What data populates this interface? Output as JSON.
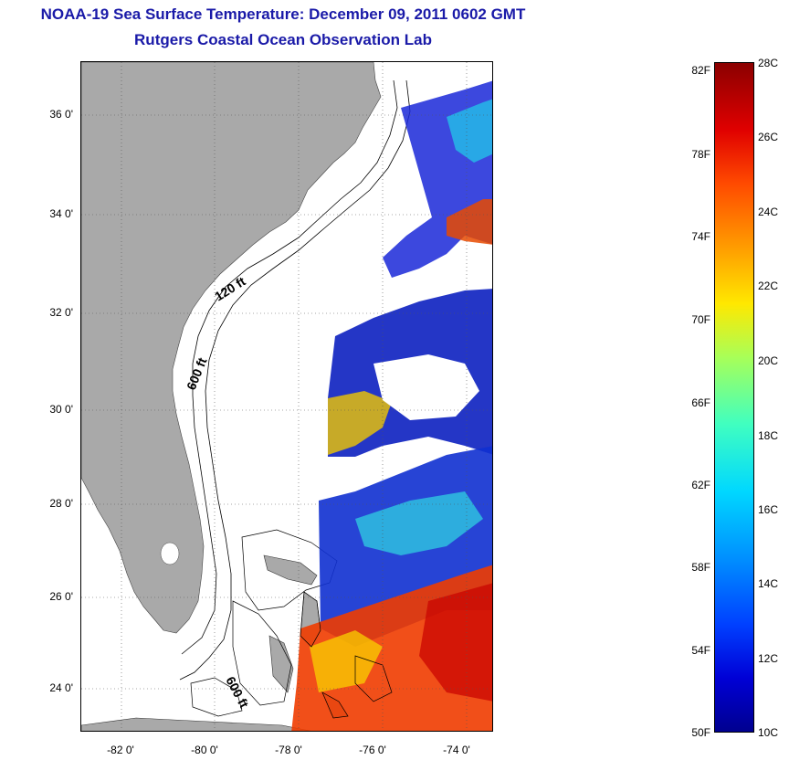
{
  "title": "NOAA-19 Sea Surface Temperature:  December 09, 2011 0602 GMT",
  "subtitle": "Rutgers Coastal Ocean Observation Lab",
  "map": {
    "lat_ticks": [
      "36 0'",
      "34 0'",
      "32 0'",
      "30 0'",
      "28 0'",
      "26 0'",
      "24 0'"
    ],
    "lon_ticks": [
      "-82 0'",
      "-80 0'",
      "-78 0'",
      "-76 0'",
      "-74 0'"
    ],
    "isobaths": [
      "120 ft",
      "600 ft",
      "600 ft"
    ],
    "land_color": "#a9a9a9"
  },
  "colorbar": {
    "fahrenheit": [
      "82F",
      "78F",
      "74F",
      "70F",
      "66F",
      "62F",
      "58F",
      "54F",
      "50F"
    ],
    "celsius": [
      "28C",
      "26C",
      "24C",
      "22C",
      "20C",
      "18C",
      "16C",
      "14C",
      "12C",
      "10C"
    ]
  }
}
